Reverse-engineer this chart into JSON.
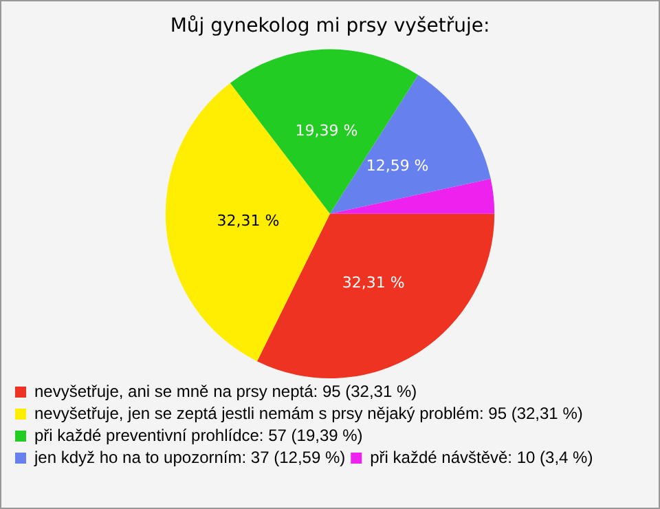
{
  "chart_data": {
    "type": "pie",
    "title": "Můj gynekolog mi prsy vyšetřuje:",
    "categories": [
      "nevyšetřuje, ani se mně na prsy neptá: 95 (32,31 %)",
      "nevyšetřuje, jen se zeptá jestli nemám s prsy nějaký problém: 95 (32,31 %)",
      "při každé preventivní prohlídce: 57 (19,39 %)",
      "jen když ho na to upozorním: 37 (12,59 %)",
      "při každé návštěvě: 10 (3,4 %)"
    ],
    "values": [
      32.31,
      32.31,
      19.39,
      12.59,
      3.4
    ],
    "colors": [
      "#ee3322",
      "#ffee00",
      "#22cc22",
      "#6680ee",
      "#ee22ee"
    ],
    "value_labels": [
      "32,31 %",
      "32,31 %",
      "19,39 %",
      "12,59 %",
      null
    ],
    "legend": "bottom"
  }
}
